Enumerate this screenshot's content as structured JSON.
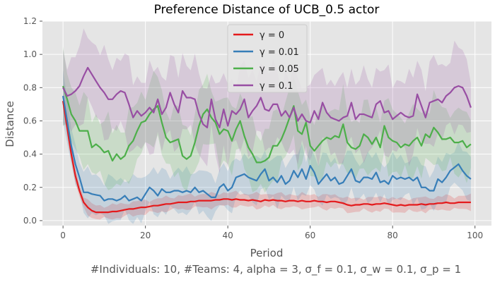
{
  "chart_data": {
    "type": "line",
    "title": "Preference Distance of UCB_0.5 actor",
    "xlabel": "Period",
    "ylabel": "Distance",
    "xlim": [
      -5,
      104
    ],
    "ylim": [
      -0.03,
      1.2
    ],
    "xticks": [
      "0",
      "20",
      "40",
      "60",
      "80",
      "100"
    ],
    "yticks": [
      "0.0",
      "0.2",
      "0.4",
      "0.6",
      "0.8",
      "1.0",
      "1.2"
    ],
    "grid": true,
    "legend_position": "top-center",
    "footnote": "#Individuals: 10,  #Teams: 4,  alpha = 3,  σ_f = 0.1,  σ_w = 0.1,  σ_p = 1",
    "series": [
      {
        "name": "γ =  0",
        "color": "#e41a1c",
        "values": [
          0.72,
          0.56,
          0.4,
          0.27,
          0.18,
          0.11,
          0.08,
          0.06,
          0.05,
          0.05,
          0.05,
          0.05,
          0.055,
          0.055,
          0.06,
          0.065,
          0.07,
          0.07,
          0.075,
          0.08,
          0.08,
          0.085,
          0.09,
          0.09,
          0.095,
          0.1,
          0.1,
          0.105,
          0.11,
          0.11,
          0.11,
          0.115,
          0.115,
          0.12,
          0.12,
          0.12,
          0.12,
          0.125,
          0.125,
          0.13,
          0.13,
          0.125,
          0.13,
          0.125,
          0.125,
          0.12,
          0.125,
          0.12,
          0.115,
          0.125,
          0.12,
          0.125,
          0.12,
          0.12,
          0.115,
          0.12,
          0.12,
          0.115,
          0.12,
          0.115,
          0.115,
          0.12,
          0.115,
          0.115,
          0.11,
          0.115,
          0.115,
          0.11,
          0.105,
          0.095,
          0.09,
          0.095,
          0.095,
          0.1,
          0.1,
          0.095,
          0.1,
          0.1,
          0.105,
          0.1,
          0.095,
          0.09,
          0.095,
          0.09,
          0.095,
          0.095,
          0.095,
          0.1,
          0.095,
          0.1,
          0.1,
          0.105,
          0.105,
          0.11,
          0.105,
          0.105,
          0.11,
          0.11,
          0.11,
          0.11
        ]
      },
      {
        "name": "γ =  0.01",
        "color": "#377eb8",
        "values": [
          0.75,
          0.6,
          0.45,
          0.34,
          0.26,
          0.17,
          0.17,
          0.16,
          0.155,
          0.15,
          0.12,
          0.13,
          0.13,
          0.12,
          0.13,
          0.15,
          0.12,
          0.13,
          0.14,
          0.12,
          0.16,
          0.2,
          0.18,
          0.15,
          0.19,
          0.17,
          0.17,
          0.18,
          0.18,
          0.17,
          0.18,
          0.17,
          0.2,
          0.17,
          0.18,
          0.16,
          0.14,
          0.14,
          0.2,
          0.22,
          0.18,
          0.2,
          0.26,
          0.27,
          0.28,
          0.26,
          0.25,
          0.24,
          0.28,
          0.31,
          0.24,
          0.26,
          0.23,
          0.27,
          0.22,
          0.24,
          0.3,
          0.26,
          0.31,
          0.25,
          0.33,
          0.29,
          0.22,
          0.25,
          0.28,
          0.24,
          0.26,
          0.22,
          0.23,
          0.27,
          0.31,
          0.24,
          0.23,
          0.26,
          0.26,
          0.25,
          0.29,
          0.23,
          0.24,
          0.22,
          0.27,
          0.25,
          0.26,
          0.25,
          0.26,
          0.24,
          0.26,
          0.2,
          0.2,
          0.18,
          0.18,
          0.25,
          0.23,
          0.26,
          0.3,
          0.32,
          0.34,
          0.3,
          0.27,
          0.25
        ]
      },
      {
        "name": "γ =  0.05",
        "color": "#4daf4a",
        "values": [
          0.81,
          0.73,
          0.64,
          0.6,
          0.54,
          0.54,
          0.54,
          0.44,
          0.46,
          0.44,
          0.41,
          0.42,
          0.36,
          0.4,
          0.37,
          0.39,
          0.45,
          0.48,
          0.54,
          0.59,
          0.6,
          0.64,
          0.67,
          0.69,
          0.59,
          0.5,
          0.47,
          0.48,
          0.49,
          0.39,
          0.37,
          0.39,
          0.47,
          0.57,
          0.64,
          0.67,
          0.62,
          0.59,
          0.52,
          0.55,
          0.54,
          0.48,
          0.55,
          0.6,
          0.51,
          0.44,
          0.4,
          0.35,
          0.35,
          0.36,
          0.38,
          0.45,
          0.45,
          0.49,
          0.55,
          0.62,
          0.69,
          0.54,
          0.52,
          0.59,
          0.45,
          0.42,
          0.45,
          0.48,
          0.5,
          0.49,
          0.51,
          0.5,
          0.58,
          0.47,
          0.44,
          0.43,
          0.45,
          0.52,
          0.5,
          0.46,
          0.5,
          0.44,
          0.57,
          0.5,
          0.48,
          0.47,
          0.44,
          0.46,
          0.45,
          0.48,
          0.5,
          0.45,
          0.52,
          0.5,
          0.56,
          0.53,
          0.49,
          0.49,
          0.5,
          0.47,
          0.47,
          0.48,
          0.44,
          0.46
        ]
      },
      {
        "name": "γ =  0.1",
        "color": "#984ea3",
        "values": [
          0.8,
          0.75,
          0.76,
          0.78,
          0.81,
          0.87,
          0.92,
          0.88,
          0.84,
          0.8,
          0.77,
          0.73,
          0.73,
          0.76,
          0.78,
          0.77,
          0.7,
          0.62,
          0.66,
          0.63,
          0.65,
          0.68,
          0.65,
          0.73,
          0.64,
          0.68,
          0.77,
          0.7,
          0.65,
          0.78,
          0.74,
          0.74,
          0.73,
          0.64,
          0.58,
          0.56,
          0.73,
          0.61,
          0.56,
          0.67,
          0.57,
          0.66,
          0.64,
          0.67,
          0.73,
          0.62,
          0.66,
          0.69,
          0.74,
          0.67,
          0.66,
          0.7,
          0.7,
          0.63,
          0.66,
          0.62,
          0.68,
          0.6,
          0.64,
          0.6,
          0.59,
          0.66,
          0.61,
          0.71,
          0.65,
          0.62,
          0.61,
          0.6,
          0.62,
          0.63,
          0.71,
          0.61,
          0.64,
          0.64,
          0.63,
          0.62,
          0.7,
          0.72,
          0.65,
          0.66,
          0.61,
          0.63,
          0.65,
          0.63,
          0.62,
          0.63,
          0.76,
          0.69,
          0.62,
          0.71,
          0.72,
          0.73,
          0.71,
          0.75,
          0.77,
          0.8,
          0.81,
          0.8,
          0.75,
          0.68
        ]
      }
    ],
    "band_halfwidth": [
      0.04,
      0.12,
      0.18,
      0.22
    ]
  }
}
